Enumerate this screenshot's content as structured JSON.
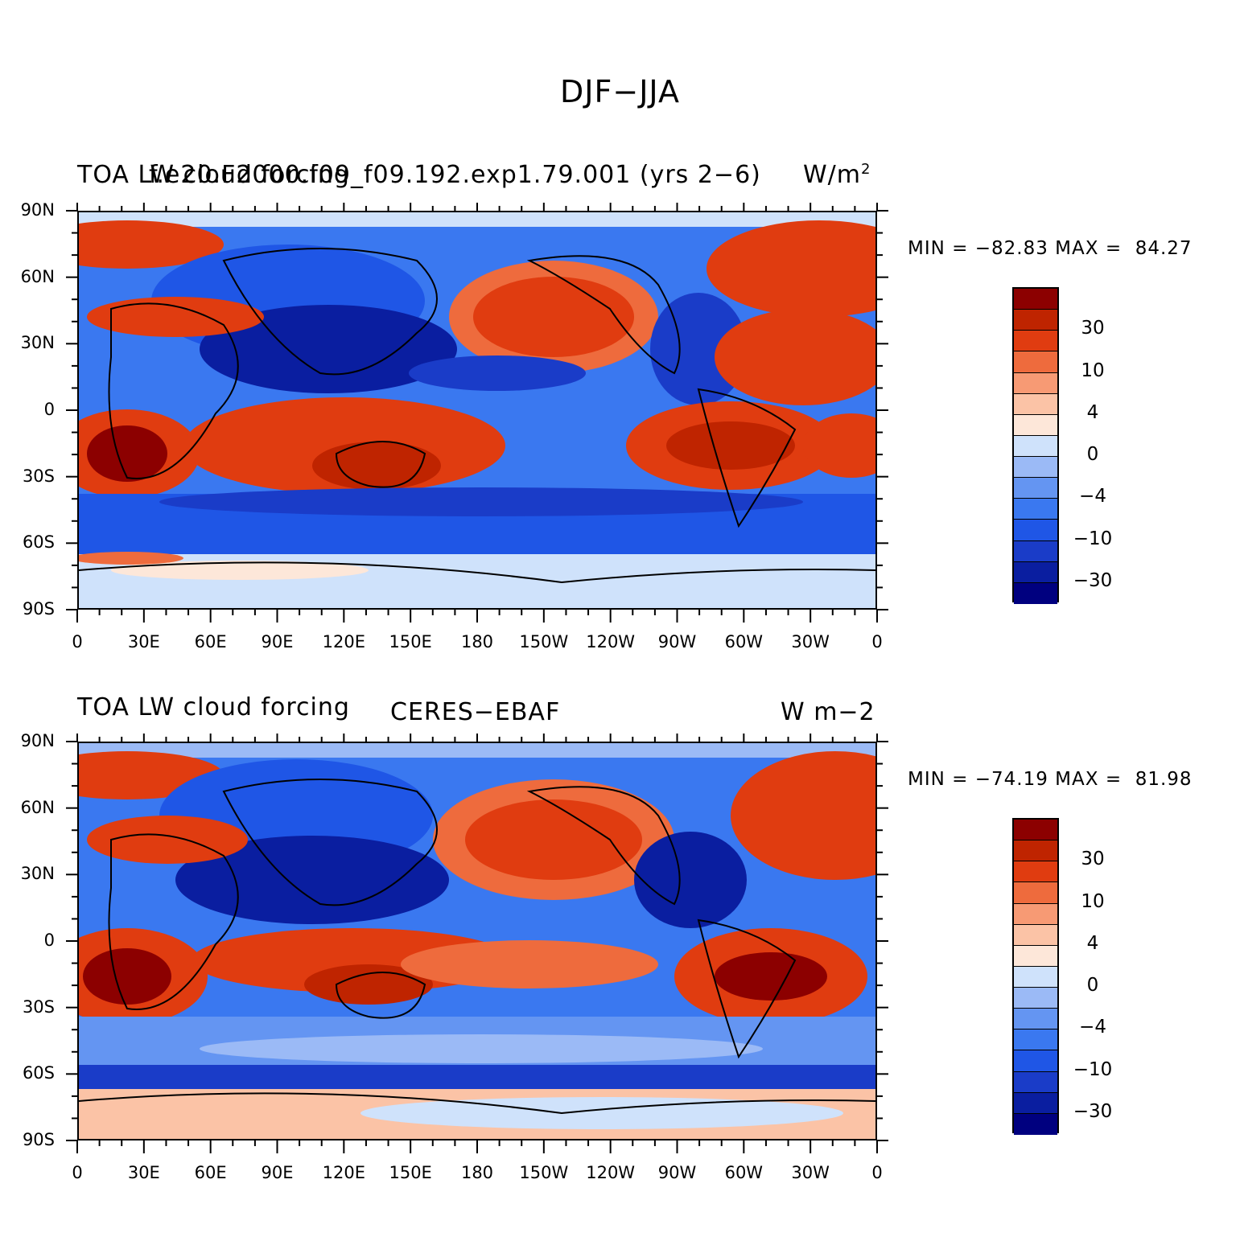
{
  "figure": {
    "title": "DJF−JJA"
  },
  "colors": [
    "#00007f",
    "#0a1ea0",
    "#1a3cc8",
    "#1f56e6",
    "#3a78f0",
    "#6495f2",
    "#9bbaf6",
    "#cfe2fb",
    "#fde7d9",
    "#fbc3a6",
    "#f79a74",
    "#ee6b3d",
    "#e03c10",
    "#bf2400",
    "#8c0000"
  ],
  "colorbar_labels": [
    "30",
    "10",
    "4",
    "0",
    "−4",
    "−10",
    "−30"
  ],
  "lat_labels": [
    "90N",
    "60N",
    "30N",
    "0",
    "30S",
    "60S",
    "90S"
  ],
  "lon_labels": [
    "0",
    "30E",
    "60E",
    "90E",
    "120E",
    "150E",
    "180",
    "150W",
    "120W",
    "90W",
    "60W",
    "30W",
    "0"
  ],
  "panels": [
    {
      "left_title": "TOA LW cloud forcing",
      "center_title": "f.e20.F2000.f09_f09.192.exp1.79.001 (yrs 2−6)",
      "units_main": "W/m",
      "units_sup": "2",
      "min_label": "MIN =",
      "min_value": "−82.83",
      "max_label": "MAX =",
      "max_value": "84.27"
    },
    {
      "left_title": "TOA LW cloud forcing",
      "center_title": "CERES−EBAF",
      "units_main": "W m−2",
      "min_label": "MIN =",
      "min_value": "−74.19",
      "max_label": "MAX =",
      "max_value": "81.98"
    }
  ]
}
